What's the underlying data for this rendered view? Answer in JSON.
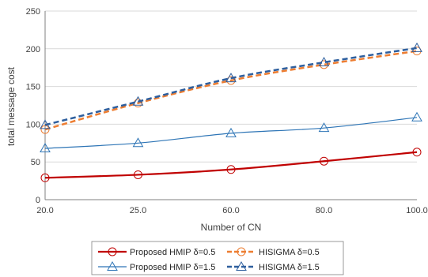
{
  "chart_data": {
    "type": "line",
    "xlabel": "Number of CN",
    "ylabel": "total message cost",
    "categories": [
      "20.0",
      "25.0",
      "60.0",
      "80.0",
      "100.0"
    ],
    "ylim": [
      0,
      250
    ],
    "yticks": [
      "0",
      "50",
      "100",
      "150",
      "200",
      "250"
    ],
    "grid": "horizontal",
    "legend_position": "bottom",
    "series": [
      {
        "name": "Proposed HMIP δ=0.5",
        "values": [
          29,
          33,
          40,
          51,
          63
        ],
        "color": "#c00000",
        "dash": "solid",
        "marker": "circle"
      },
      {
        "name": "HISIGMA  δ=0.5",
        "values": [
          93,
          128,
          158,
          179,
          197
        ],
        "color": "#ed7d31",
        "dash": "dashed",
        "marker": "circle"
      },
      {
        "name": "Proposed HMIP δ=1.5",
        "values": [
          68,
          75,
          88,
          95,
          109
        ],
        "color": "#2e75b6",
        "dash": "solid",
        "marker": "triangle"
      },
      {
        "name": "HISIGMA δ=1.5",
        "values": [
          99,
          130,
          161,
          182,
          201
        ],
        "color": "#2e5f9e",
        "dash": "dashed",
        "marker": "triangle"
      }
    ]
  }
}
